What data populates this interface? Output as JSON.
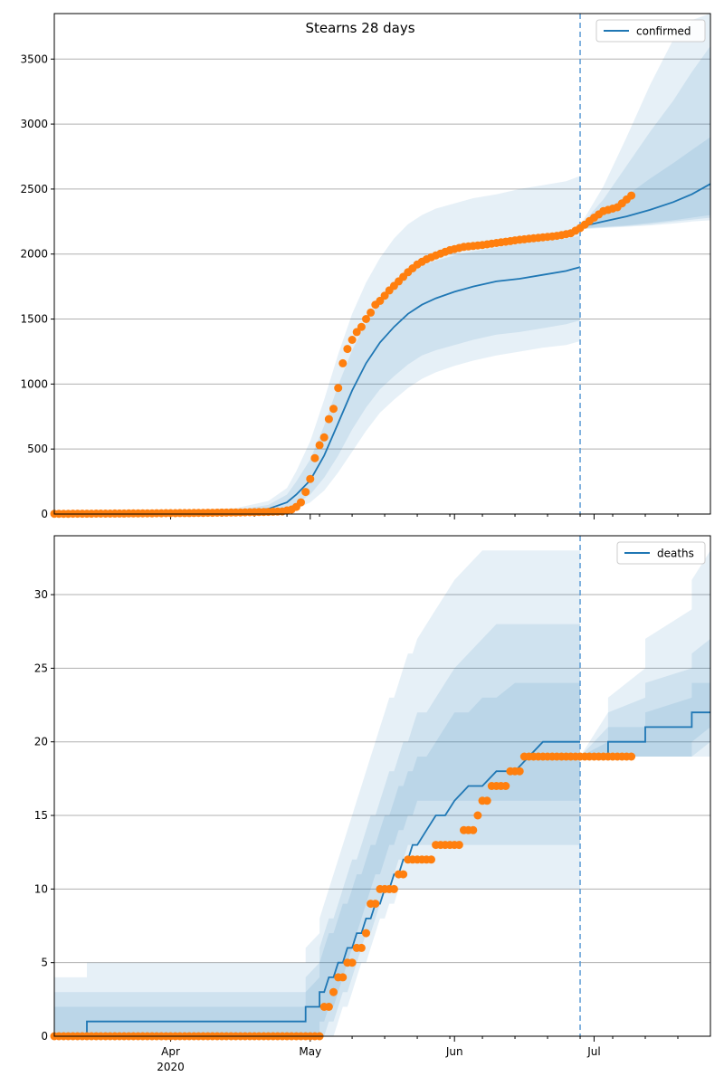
{
  "figure_title": "Stearns 28 days",
  "colors": {
    "line": "#1f77b4",
    "band": "#1f77b4",
    "observed": "#ff7f0e",
    "grid": "#b0b0b0",
    "vline": "#5b9bd5"
  },
  "chart_data": [
    {
      "type": "line",
      "name": "confirmed-panel",
      "legend": "confirmed",
      "legend_position": "top-right",
      "grid": "horizontal",
      "x_range": [
        "2020-03-07",
        "2020-07-26"
      ],
      "ylim": [
        0,
        3850
      ],
      "yticks": [
        0,
        500,
        1000,
        1500,
        2000,
        2500,
        3000,
        3500
      ],
      "forecast_start": "2020-06-28",
      "fit": {
        "x": [
          "2020-03-07",
          "2020-04-01",
          "2020-04-15",
          "2020-04-22",
          "2020-04-26",
          "2020-04-28",
          "2020-05-01",
          "2020-05-04",
          "2020-05-07",
          "2020-05-10",
          "2020-05-13",
          "2020-05-16",
          "2020-05-19",
          "2020-05-22",
          "2020-05-25",
          "2020-05-28",
          "2020-06-01",
          "2020-06-05",
          "2020-06-10",
          "2020-06-15",
          "2020-06-20",
          "2020-06-25",
          "2020-06-28"
        ],
        "values": [
          5,
          8,
          15,
          40,
          90,
          150,
          260,
          450,
          700,
          950,
          1160,
          1320,
          1440,
          1540,
          1610,
          1660,
          1710,
          1750,
          1790,
          1810,
          1840,
          1870,
          1900
        ]
      },
      "fit_bands": [
        {
          "lower": [
            0,
            0,
            3,
            15,
            40,
            80,
            150,
            280,
            450,
            650,
            820,
            960,
            1060,
            1150,
            1220,
            1260,
            1300,
            1340,
            1380,
            1400,
            1430,
            1460,
            1490
          ],
          "upper": [
            10,
            15,
            30,
            70,
            150,
            250,
            420,
            680,
            990,
            1260,
            1470,
            1640,
            1760,
            1850,
            1910,
            1950,
            1990,
            2020,
            2050,
            2080,
            2100,
            2120,
            2140
          ]
        },
        {
          "lower": [
            0,
            0,
            0,
            5,
            20,
            40,
            90,
            180,
            320,
            480,
            640,
            780,
            880,
            970,
            1040,
            1090,
            1140,
            1180,
            1220,
            1250,
            1280,
            1300,
            1330
          ],
          "upper": [
            20,
            25,
            45,
            100,
            200,
            330,
            560,
            880,
            1230,
            1540,
            1780,
            1970,
            2120,
            2230,
            2300,
            2350,
            2390,
            2430,
            2460,
            2500,
            2530,
            2560,
            2600
          ]
        }
      ],
      "forecast": {
        "x": [
          "2020-06-28",
          "2020-07-03",
          "2020-07-08",
          "2020-07-13",
          "2020-07-18",
          "2020-07-22",
          "2020-07-26"
        ],
        "values": [
          2210,
          2250,
          2290,
          2340,
          2400,
          2460,
          2540
        ]
      },
      "forecast_bands": [
        {
          "lower": [
            2200,
            2210,
            2220,
            2240,
            2260,
            2280,
            2300
          ],
          "upper": [
            2210,
            2320,
            2450,
            2580,
            2700,
            2800,
            2900
          ]
        },
        {
          "lower": [
            2195,
            2205,
            2215,
            2230,
            2250,
            2265,
            2280
          ],
          "upper": [
            2215,
            2420,
            2680,
            2940,
            3180,
            3400,
            3600
          ]
        },
        {
          "lower": [
            2190,
            2200,
            2210,
            2220,
            2235,
            2250,
            2260
          ],
          "upper": [
            2220,
            2520,
            2900,
            3300,
            3650,
            3800,
            3850
          ]
        }
      ],
      "observed": {
        "x": [
          "2020-03-07",
          "2020-03-15",
          "2020-03-25",
          "2020-04-05",
          "2020-04-15",
          "2020-04-20",
          "2020-04-25",
          "2020-04-27",
          "2020-04-28",
          "2020-04-29",
          "2020-04-30",
          "2020-05-01",
          "2020-05-02",
          "2020-05-03",
          "2020-05-04",
          "2020-05-05",
          "2020-05-06",
          "2020-05-07",
          "2020-05-08",
          "2020-05-09",
          "2020-05-10",
          "2020-05-11",
          "2020-05-12",
          "2020-05-13",
          "2020-05-14",
          "2020-05-15",
          "2020-05-16",
          "2020-05-17",
          "2020-05-18",
          "2020-05-20",
          "2020-05-22",
          "2020-05-24",
          "2020-05-26",
          "2020-05-28",
          "2020-05-31",
          "2020-06-03",
          "2020-06-07",
          "2020-06-11",
          "2020-06-15",
          "2020-06-19",
          "2020-06-23",
          "2020-06-26",
          "2020-06-28",
          "2020-07-01",
          "2020-07-03",
          "2020-07-06",
          "2020-07-08",
          "2020-07-09"
        ],
        "values": [
          2,
          3,
          5,
          8,
          12,
          15,
          20,
          35,
          55,
          90,
          170,
          270,
          430,
          530,
          590,
          730,
          810,
          970,
          1160,
          1270,
          1340,
          1400,
          1440,
          1500,
          1550,
          1610,
          1640,
          1680,
          1720,
          1790,
          1860,
          1920,
          1960,
          1990,
          2030,
          2055,
          2070,
          2090,
          2110,
          2125,
          2140,
          2160,
          2200,
          2280,
          2330,
          2360,
          2420,
          2450
        ]
      }
    },
    {
      "type": "line",
      "name": "deaths-panel",
      "legend": "deaths",
      "legend_position": "top-right",
      "grid": "horizontal",
      "x_range": [
        "2020-03-07",
        "2020-07-26"
      ],
      "ylim": [
        0,
        34
      ],
      "yticks": [
        0,
        5,
        10,
        15,
        20,
        25,
        30
      ],
      "xticks": [
        "Apr",
        "May",
        "Jun",
        "Jul"
      ],
      "xtick_dates": [
        "2020-04-01",
        "2020-05-01",
        "2020-06-01",
        "2020-07-01"
      ],
      "x_year_label": "2020",
      "forecast_start": "2020-06-28",
      "fit": {
        "x": [
          "2020-03-07",
          "2020-03-14",
          "2020-03-14",
          "2020-04-30",
          "2020-04-30",
          "2020-05-03",
          "2020-05-03",
          "2020-05-04",
          "2020-05-05",
          "2020-05-06",
          "2020-05-07",
          "2020-05-08",
          "2020-05-09",
          "2020-05-10",
          "2020-05-11",
          "2020-05-12",
          "2020-05-13",
          "2020-05-14",
          "2020-05-15",
          "2020-05-16",
          "2020-05-17",
          "2020-05-18",
          "2020-05-19",
          "2020-05-20",
          "2020-05-21",
          "2020-05-22",
          "2020-05-23",
          "2020-05-24",
          "2020-05-26",
          "2020-05-28",
          "2020-05-30",
          "2020-06-01",
          "2020-06-04",
          "2020-06-07",
          "2020-06-10",
          "2020-06-14",
          "2020-06-20",
          "2020-06-28"
        ],
        "values": [
          0,
          0,
          1,
          1,
          2,
          2,
          3,
          3,
          4,
          4,
          5,
          5,
          6,
          6,
          7,
          7,
          8,
          8,
          9,
          9,
          10,
          10,
          11,
          11,
          12,
          12,
          13,
          13,
          14,
          15,
          15,
          16,
          17,
          17,
          18,
          18,
          20,
          20
        ]
      },
      "fit_bands": [
        {
          "lower": [
            0,
            0,
            0,
            0,
            0,
            0,
            1,
            1,
            2,
            2,
            3,
            4,
            5,
            6,
            7,
            8,
            9,
            10,
            11,
            11,
            12,
            13,
            13,
            14,
            14,
            15,
            15,
            16,
            16,
            16,
            16,
            16,
            16,
            16,
            16,
            16,
            16,
            16
          ],
          "upper": [
            2,
            2,
            2,
            2,
            3,
            4,
            5,
            6,
            7,
            7,
            8,
            9,
            9,
            10,
            11,
            11,
            12,
            13,
            13,
            14,
            15,
            15,
            16,
            17,
            17,
            18,
            18,
            19,
            19,
            20,
            21,
            22,
            22,
            23,
            23,
            24,
            24,
            24
          ]
        },
        {
          "lower": [
            0,
            0,
            0,
            0,
            0,
            0,
            0,
            0,
            1,
            1,
            2,
            3,
            3,
            4,
            5,
            6,
            7,
            7,
            8,
            9,
            10,
            10,
            11,
            12,
            12,
            13,
            13,
            13,
            13,
            13,
            13,
            13,
            13,
            13,
            13,
            13,
            13,
            13
          ],
          "upper": [
            3,
            3,
            3,
            3,
            4,
            5,
            6,
            7,
            8,
            8,
            9,
            10,
            11,
            12,
            12,
            13,
            14,
            15,
            15,
            16,
            17,
            18,
            18,
            19,
            20,
            20,
            21,
            22,
            22,
            23,
            24,
            25,
            26,
            27,
            28,
            28,
            28,
            28
          ]
        },
        {
          "lower": [
            0,
            0,
            0,
            0,
            0,
            0,
            0,
            0,
            0,
            0,
            1,
            2,
            2,
            3,
            4,
            5,
            5,
            6,
            7,
            8,
            8,
            9,
            9,
            10,
            10,
            10,
            10,
            10,
            10,
            10,
            10,
            10,
            10,
            10,
            10,
            10,
            10,
            10
          ],
          "upper": [
            4,
            4,
            5,
            5,
            6,
            7,
            8,
            9,
            10,
            11,
            12,
            13,
            14,
            15,
            16,
            17,
            18,
            19,
            20,
            21,
            22,
            23,
            23,
            24,
            25,
            26,
            26,
            27,
            28,
            29,
            30,
            31,
            32,
            33,
            33,
            33,
            33,
            33
          ]
        }
      ],
      "forecast": {
        "x": [
          "2020-06-28",
          "2020-07-04",
          "2020-07-04",
          "2020-07-12",
          "2020-07-12",
          "2020-07-22",
          "2020-07-22",
          "2020-07-26"
        ],
        "values": [
          19,
          19,
          20,
          20,
          21,
          21,
          22,
          22
        ]
      },
      "forecast_bands": [
        {
          "lower": [
            19,
            19,
            19,
            19,
            19,
            19,
            20,
            21
          ],
          "upper": [
            19,
            20,
            21,
            21,
            22,
            23,
            24,
            24
          ]
        },
        {
          "lower": [
            19,
            19,
            19,
            19,
            19,
            19,
            19,
            20
          ],
          "upper": [
            19,
            21,
            22,
            23,
            24,
            25,
            26,
            27
          ]
        },
        {
          "lower": [
            19,
            19,
            19,
            19,
            19,
            19,
            19,
            19
          ],
          "upper": [
            19,
            22,
            23,
            25,
            27,
            29,
            31,
            33
          ]
        }
      ],
      "observed": {
        "x": [
          "2020-03-07",
          "2020-03-12",
          "2020-03-17",
          "2020-03-22",
          "2020-03-27",
          "2020-04-01",
          "2020-04-06",
          "2020-04-11",
          "2020-04-16",
          "2020-04-21",
          "2020-04-26",
          "2020-05-03",
          "2020-05-04",
          "2020-05-05",
          "2020-05-06",
          "2020-05-07",
          "2020-05-08",
          "2020-05-09",
          "2020-05-10",
          "2020-05-11",
          "2020-05-12",
          "2020-05-13",
          "2020-05-14",
          "2020-05-15",
          "2020-05-16",
          "2020-05-17",
          "2020-05-18",
          "2020-05-19",
          "2020-05-20",
          "2020-05-21",
          "2020-05-22",
          "2020-05-24",
          "2020-05-26",
          "2020-05-28",
          "2020-05-30",
          "2020-06-01",
          "2020-06-03",
          "2020-06-05",
          "2020-06-06",
          "2020-06-07",
          "2020-06-09",
          "2020-06-11",
          "2020-06-12",
          "2020-06-13",
          "2020-06-16",
          "2020-06-20",
          "2020-06-24",
          "2020-06-28",
          "2020-07-02",
          "2020-07-06",
          "2020-07-09"
        ],
        "values": [
          0,
          0,
          0,
          0,
          0,
          0,
          0,
          0,
          0,
          0,
          0,
          0,
          2,
          2,
          3,
          4,
          4,
          5,
          5,
          6,
          6,
          7,
          9,
          9,
          10,
          10,
          10,
          10,
          11,
          11,
          12,
          12,
          12,
          13,
          13,
          13,
          14,
          14,
          15,
          16,
          17,
          17,
          17,
          18,
          19,
          19,
          19,
          19,
          19,
          19,
          19
        ]
      }
    }
  ]
}
